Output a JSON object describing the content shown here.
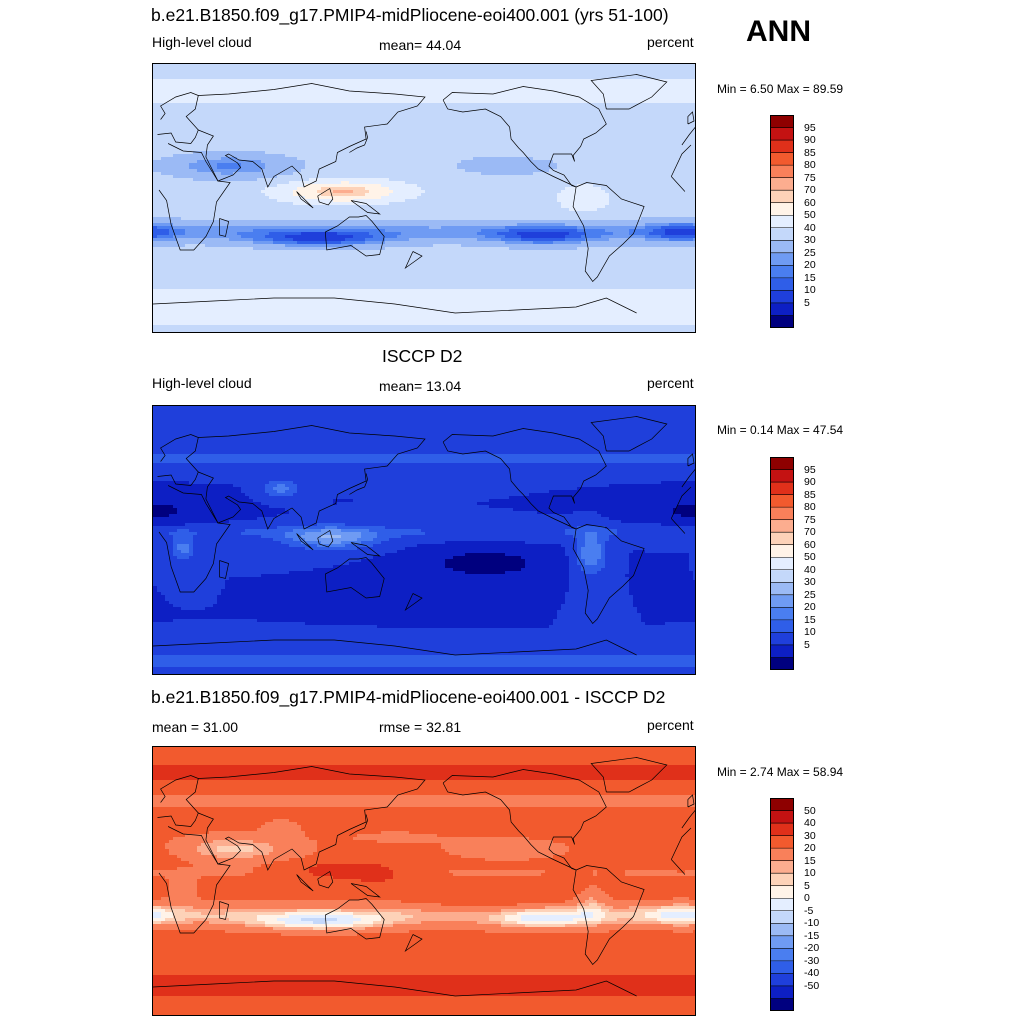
{
  "season": "ANN",
  "colors": {
    "levels_abs": [
      "#00007f",
      "#0d1fc4",
      "#1f3fdb",
      "#2f5ee8",
      "#4a7ef0",
      "#6f9bf3",
      "#9bbaf5",
      "#c4d8fa",
      "#e4eeff",
      "#fff3e8",
      "#fdd2b8",
      "#fcad8f",
      "#f9805a",
      "#f25a2e",
      "#e0301a",
      "#c41212",
      "#8e0000"
    ],
    "levels_diff": [
      "#00007f",
      "#0d1fc4",
      "#1f3fdb",
      "#2f5ee8",
      "#4a7ef0",
      "#6f9bf3",
      "#9bbaf5",
      "#c4d8fa",
      "#e4eeff",
      "#fff3e8",
      "#fdd2b8",
      "#fcad8f",
      "#f9805a",
      "#f25a2e",
      "#e0301a",
      "#c41212",
      "#8e0000"
    ]
  },
  "panels": [
    {
      "title": "b.e21.B1850.f09_g17.PMIP4-midPliocene-eoi400.001 (yrs 51-100)",
      "left_label": "High-level cloud",
      "center_label": "mean=  44.04",
      "right_label": "percent",
      "minmax": "Min =   6.50 Max =  89.59",
      "cbar_labels": [
        "95",
        "90",
        "85",
        "80",
        "75",
        "70",
        "60",
        "50",
        "40",
        "30",
        "25",
        "20",
        "15",
        "10",
        "5"
      ],
      "field": "model"
    },
    {
      "title": "ISCCP D2",
      "left_label": "High-level cloud",
      "center_label": "mean=  13.04",
      "right_label": "percent",
      "minmax": "Min =   0.14 Max =  47.54",
      "cbar_labels": [
        "95",
        "90",
        "85",
        "80",
        "75",
        "70",
        "60",
        "50",
        "40",
        "30",
        "25",
        "20",
        "15",
        "10",
        "5"
      ],
      "field": "obs"
    },
    {
      "title": "b.e21.B1850.f09_g17.PMIP4-midPliocene-eoi400.001 - ISCCP D2",
      "left_label": "mean =  31.00",
      "center_label": "rmse =  32.81",
      "right_label": "percent",
      "minmax": "Min =   2.74 Max =  58.94",
      "cbar_labels": [
        "50",
        "40",
        "30",
        "20",
        "15",
        "10",
        "5",
        "0",
        "-5",
        "-10",
        "-15",
        "-20",
        "-30",
        "-40",
        "-50"
      ],
      "field": "diff"
    }
  ]
}
